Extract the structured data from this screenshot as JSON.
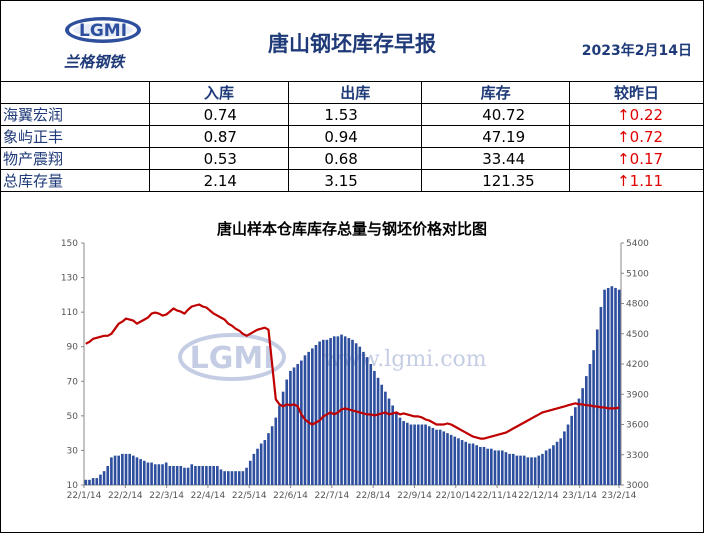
{
  "header": {
    "logo_text": "LGMI",
    "logo_cn": "兰格钢铁",
    "title": "唐山钢坯库存早报",
    "date": "2023年2月14日"
  },
  "table": {
    "columns": [
      "入库",
      "出库",
      "库存",
      "较昨日"
    ],
    "rows": [
      {
        "name": "海翼宏润",
        "in": "0.74",
        "out": "1.53",
        "stock": "40.72",
        "change": "↑0.22"
      },
      {
        "name": "象屿正丰",
        "in": "0.87",
        "out": "0.94",
        "stock": "47.19",
        "change": "↑0.72"
      },
      {
        "name": "物产震翔",
        "in": "0.53",
        "out": "0.68",
        "stock": "33.44",
        "change": "↑0.17"
      },
      {
        "name": "总库存量",
        "in": "2.14",
        "out": "3.15",
        "stock": "121.35",
        "change": "↑1.11"
      }
    ]
  },
  "watermark": {
    "text": "www.lgmi.com",
    "logo": "LGMI"
  },
  "chart_data": {
    "type": "bar+line",
    "title": "唐山样本仓库库存总量与钢坯价格对比图",
    "x_ticks": [
      "22/1/14",
      "22/2/14",
      "22/3/14",
      "22/4/14",
      "22/5/14",
      "22/6/14",
      "22/7/14",
      "22/8/14",
      "22/9/14",
      "22/10/14",
      "22/11/14",
      "22/12/14",
      "23/1/14",
      "23/2/14"
    ],
    "y_left": {
      "min": 10,
      "max": 150,
      "ticks": [
        10,
        30,
        50,
        70,
        90,
        110,
        130,
        150
      ]
    },
    "y_right": {
      "min": 3000,
      "max": 5400,
      "ticks": [
        3000,
        3300,
        3600,
        3900,
        4200,
        4500,
        4800,
        5100,
        5400
      ]
    },
    "series": [
      {
        "kind": "bar",
        "axis": "left",
        "color": "#2e4f9e",
        "values": [
          13,
          13,
          14,
          14,
          16,
          18,
          21,
          26,
          27,
          27,
          28,
          28,
          28,
          27,
          26,
          25,
          24,
          23,
          23,
          22,
          22,
          22,
          23,
          21,
          21,
          21,
          21,
          20,
          20,
          22,
          21,
          21,
          21,
          21,
          21,
          21,
          21,
          19,
          18,
          18,
          18,
          18,
          18,
          18,
          20,
          24,
          28,
          31,
          34,
          36,
          40,
          44,
          49,
          56,
          64,
          71,
          76,
          78,
          80,
          82,
          85,
          87,
          89,
          91,
          93,
          94,
          94,
          95,
          96,
          96,
          97,
          96,
          95,
          94,
          92,
          90,
          87,
          84,
          80,
          76,
          72,
          68,
          64,
          60,
          56,
          52,
          49,
          47,
          46,
          45,
          45,
          45,
          45,
          45,
          44,
          43,
          42,
          42,
          41,
          40,
          39,
          38,
          37,
          36,
          35,
          34,
          34,
          33,
          32,
          32,
          31,
          31,
          30,
          30,
          30,
          29,
          28,
          28,
          27,
          27,
          27,
          26,
          26,
          26,
          27,
          28,
          30,
          31,
          33,
          35,
          37,
          41,
          45,
          50,
          55,
          60,
          66,
          73,
          80,
          88,
          100,
          113,
          123,
          124,
          125,
          124,
          123
        ]
      },
      {
        "kind": "line",
        "axis": "right",
        "color": "#c00000",
        "values": [
          4400,
          4420,
          4450,
          4460,
          4470,
          4480,
          4480,
          4500,
          4550,
          4600,
          4620,
          4650,
          4640,
          4630,
          4600,
          4620,
          4640,
          4660,
          4700,
          4710,
          4700,
          4680,
          4690,
          4720,
          4750,
          4730,
          4720,
          4700,
          4740,
          4770,
          4780,
          4790,
          4770,
          4760,
          4730,
          4700,
          4680,
          4660,
          4640,
          4600,
          4580,
          4550,
          4530,
          4500,
          4480,
          4500,
          4520,
          4540,
          4550,
          4560,
          4540,
          4200,
          3850,
          3800,
          3780,
          3800,
          3790,
          3800,
          3780,
          3700,
          3650,
          3620,
          3600,
          3620,
          3640,
          3680,
          3700,
          3720,
          3700,
          3720,
          3750,
          3760,
          3750,
          3740,
          3730,
          3720,
          3710,
          3700,
          3700,
          3690,
          3700,
          3710,
          3720,
          3700,
          3710,
          3720,
          3700,
          3710,
          3700,
          3690,
          3680,
          3680,
          3670,
          3650,
          3640,
          3620,
          3600,
          3600,
          3600,
          3610,
          3600,
          3580,
          3560,
          3540,
          3520,
          3500,
          3480,
          3470,
          3460,
          3460,
          3470,
          3480,
          3490,
          3500,
          3510,
          3520,
          3540,
          3560,
          3580,
          3600,
          3620,
          3640,
          3660,
          3680,
          3700,
          3720,
          3730,
          3740,
          3750,
          3760,
          3770,
          3780,
          3790,
          3800,
          3810,
          3800,
          3800,
          3790,
          3790,
          3780,
          3780,
          3770,
          3770,
          3760,
          3760,
          3760,
          3770
        ]
      }
    ]
  }
}
